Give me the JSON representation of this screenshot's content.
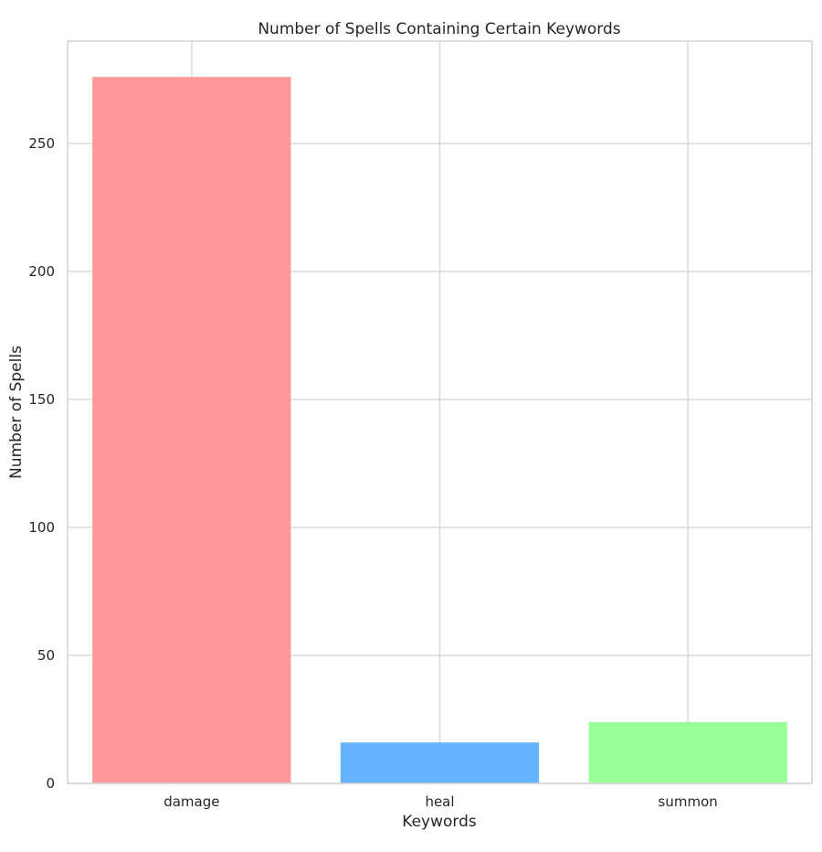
{
  "chart_data": {
    "type": "bar",
    "title": "Number of Spells Containing Certain Keywords",
    "xlabel": "Keywords",
    "ylabel": "Number of Spells",
    "categories": [
      "damage",
      "heal",
      "summon"
    ],
    "values": [
      276,
      16,
      24
    ],
    "colors": [
      "#ff9999",
      "#66b3ff",
      "#99ff99"
    ],
    "ylim": [
      0,
      290
    ],
    "yticks": [
      0,
      50,
      100,
      150,
      200,
      250
    ],
    "grid": true,
    "legend": false
  }
}
